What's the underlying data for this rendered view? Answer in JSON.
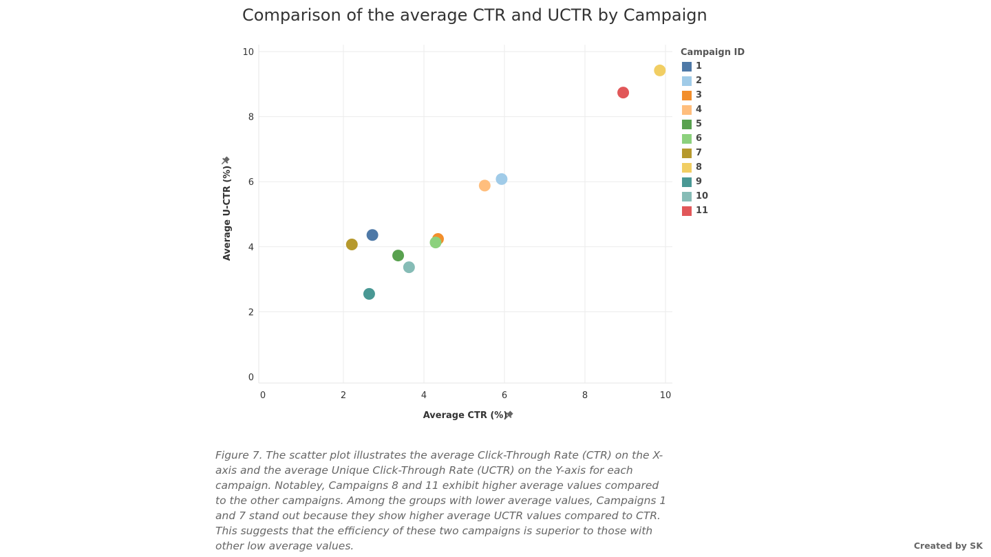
{
  "title": "Comparison of the average CTR and UCTR by Campaign",
  "caption": "Figure 7. The scatter plot illustrates the average Click-Through Rate (CTR) on the X-axis and the average Unique Click-Through Rate (UCTR) on the Y-axis for each campaign. Notabley, Campaigns 8 and 11 exhibit higher average values compared to the other campaigns. Among the groups with lower average values, Campaigns 1 and 7 stand out because they show higher average UCTR values compared to CTR. This suggests that the efficiency of these two campaigns is superior to those with other low average values.",
  "credit": "Created by SK",
  "chart_data": {
    "type": "scatter",
    "title": "Comparison of the average CTR and UCTR by Campaign",
    "xlabel": "Average CTR (%)",
    "ylabel": "Average U-CTR (%)",
    "xlim": [
      0,
      10
    ],
    "ylim": [
      0,
      10
    ],
    "x_ticks": [
      0,
      2,
      4,
      6,
      8,
      10
    ],
    "y_ticks": [
      0,
      2,
      4,
      6,
      8,
      10
    ],
    "grid": true,
    "legend_title": "Campaign ID",
    "legend_position": "right",
    "series": [
      {
        "name": "1",
        "color": "#4e79a7",
        "x": 2.72,
        "y": 4.36
      },
      {
        "name": "2",
        "color": "#a0cbe8",
        "x": 5.93,
        "y": 6.08
      },
      {
        "name": "3",
        "color": "#f28e2b",
        "x": 4.35,
        "y": 4.24
      },
      {
        "name": "4",
        "color": "#ffbe7d",
        "x": 5.51,
        "y": 5.88
      },
      {
        "name": "5",
        "color": "#59a14f",
        "x": 3.36,
        "y": 3.73
      },
      {
        "name": "6",
        "color": "#8cd17d",
        "x": 4.29,
        "y": 4.13
      },
      {
        "name": "7",
        "color": "#b6992d",
        "x": 2.21,
        "y": 4.07
      },
      {
        "name": "8",
        "color": "#f1ce63",
        "x": 9.86,
        "y": 9.42
      },
      {
        "name": "9",
        "color": "#499894",
        "x": 2.64,
        "y": 2.55
      },
      {
        "name": "10",
        "color": "#86bcb6",
        "x": 3.63,
        "y": 3.37
      },
      {
        "name": "11",
        "color": "#e15759",
        "x": 8.95,
        "y": 8.74
      }
    ]
  }
}
